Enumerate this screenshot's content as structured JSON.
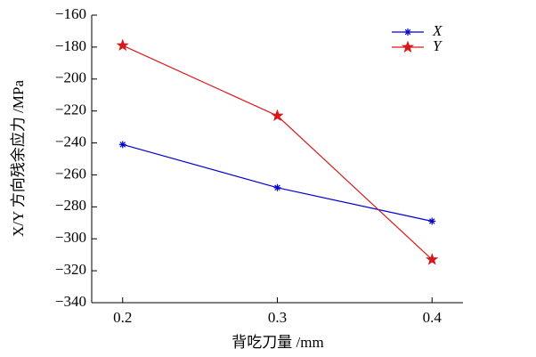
{
  "chart_data": {
    "type": "line",
    "x_label": "背吃刀量 /mm",
    "y_label": "X/Y 方向残余应力 /MPa",
    "x": [
      0.2,
      0.3,
      0.4
    ],
    "series": [
      {
        "name": "X",
        "color": "#0000cc",
        "marker": "asterisk",
        "values": [
          -241,
          -268,
          -289
        ]
      },
      {
        "name": "Y",
        "color": "#d7191c",
        "marker": "star",
        "values": [
          -179,
          -223,
          -313
        ]
      }
    ],
    "xlim": [
      0.18,
      0.42
    ],
    "xticks": [
      0.2,
      0.3,
      0.4
    ],
    "ylim": [
      -340,
      -160
    ],
    "yticks": [
      {
        "value": -340,
        "label": "−340"
      },
      {
        "value": -320,
        "label": "−320"
      },
      {
        "value": -300,
        "label": "−300"
      },
      {
        "value": -280,
        "label": "−280"
      },
      {
        "value": -260,
        "label": "−260"
      },
      {
        "value": -240,
        "label": "−240"
      },
      {
        "value": -220,
        "label": "−220"
      },
      {
        "value": -200,
        "label": "−200"
      },
      {
        "value": -180,
        "label": "−180"
      },
      {
        "value": -160,
        "label": "−160"
      }
    ],
    "legend_position": "upper right",
    "grid": false
  }
}
